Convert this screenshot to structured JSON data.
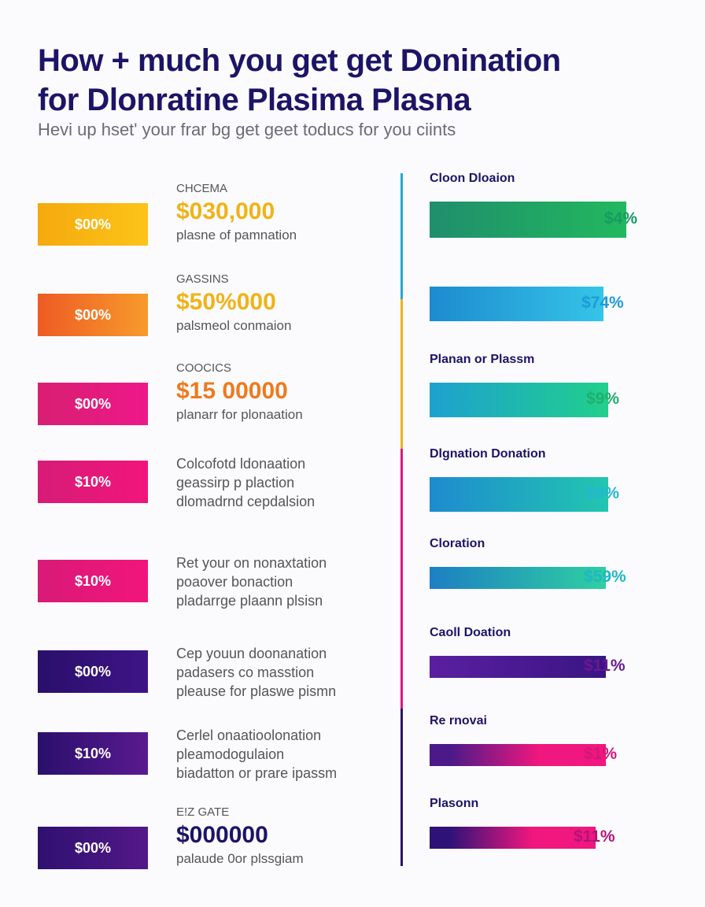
{
  "title_line1": "How + much you get get Donination",
  "title_line2": "for Dlonratine Plasima Plasna",
  "subtitle": "Hevi up hset' your frar bg get geet toducs for you ciints",
  "left_rows": [
    {
      "badge": "$00%",
      "colors": [
        "#f5a90e",
        "#fcc419"
      ],
      "amount_color": "#f0b316",
      "small": "CHCEMA",
      "amount": "$030,000",
      "desc": "plasne of pamnation",
      "lines": []
    },
    {
      "badge": "$00%",
      "colors": [
        "#ee5b24",
        "#f79a2c"
      ],
      "amount_color": "#f0b316",
      "small": "GASSINS",
      "amount": "$50%000",
      "desc": "palsmeol conmaion",
      "lines": []
    },
    {
      "badge": "$00%",
      "colors": [
        "#d81f72",
        "#ee1889"
      ],
      "amount_color": "#ee7a1f",
      "small": "COOCICS",
      "amount": "$15 00000",
      "desc": "planarr for plonaation",
      "lines": []
    },
    {
      "badge": "$10%",
      "colors": [
        "#d61c77",
        "#f2157b"
      ],
      "amount_color": "",
      "small": "",
      "amount": "",
      "desc": "",
      "lines": [
        "Colcofotd ldonaation",
        "geassirp p plaction",
        "dlomadrnd cepdalsion"
      ]
    },
    {
      "badge": "$10%",
      "colors": [
        "#d81a78",
        "#f2157b"
      ],
      "amount_color": "",
      "small": "",
      "amount": "",
      "desc": "",
      "lines": [
        "Ret your on nonaxtation",
        "poaover bonaction",
        "pladarrge plaann plsisn"
      ]
    },
    {
      "badge": "$00%",
      "colors": [
        "#2a0f6b",
        "#3e1486"
      ],
      "amount_color": "",
      "small": "",
      "amount": "",
      "desc": "",
      "lines": [
        "Cep youun doonanation",
        "padasers co masstion",
        "pleause for plaswe pismn"
      ]
    },
    {
      "badge": "$10%",
      "colors": [
        "#2a0f6b",
        "#5a1a90"
      ],
      "amount_color": "",
      "small": "",
      "amount": "",
      "desc": "",
      "lines": [
        "Cerlel onaatioolonation",
        "pleamodogulaion",
        "biadatton or prare ipassm"
      ]
    },
    {
      "badge": "$00%",
      "colors": [
        "#2e1070",
        "#541888"
      ],
      "amount_color": "#1c1466",
      "small": "E!Z GATE",
      "amount": "$000000",
      "desc": "palaude 0or plssgiam",
      "lines": []
    }
  ],
  "axis_colors": [
    "#23a9d6",
    "#f2b01c",
    "#e0167d",
    "#2a1268"
  ],
  "chart_data": {
    "type": "bar",
    "categories": [
      "Cloon Dloaion",
      "",
      "Planan or Plassm",
      "Dlgnation Donation",
      "Cloration",
      "Caoll Doation",
      "Re rnovai",
      "Plasonn"
    ],
    "value_labels": [
      "$4%",
      "$74%",
      "$9%",
      "$9%",
      "$59%",
      "$11%",
      "$1%",
      "$11%"
    ],
    "values": [
      78,
      69,
      71,
      71,
      70,
      70,
      70,
      66
    ],
    "value_unit": "percent of the widest bar track",
    "series_colors": [
      [
        "#1f8e6c",
        "#22b85e",
        "#179a63"
      ],
      [
        "#1d8bcf",
        "#35c4e8",
        "#1f9bd8"
      ],
      [
        "#1da1cf",
        "#21cf8c",
        "#20b06a"
      ],
      [
        "#1d8bcf",
        "#22c6b0",
        "#24b6d4"
      ],
      [
        "#1d7fc4",
        "#2fd0a0",
        "#20b6c8"
      ],
      [
        "#5a1fa0",
        "#3a1584",
        "#6a1890"
      ],
      [
        "#4b1a88",
        "#f0177e",
        "#d3167a"
      ],
      [
        "#2f1278",
        "#f0177e",
        "#b0147a"
      ]
    ]
  }
}
